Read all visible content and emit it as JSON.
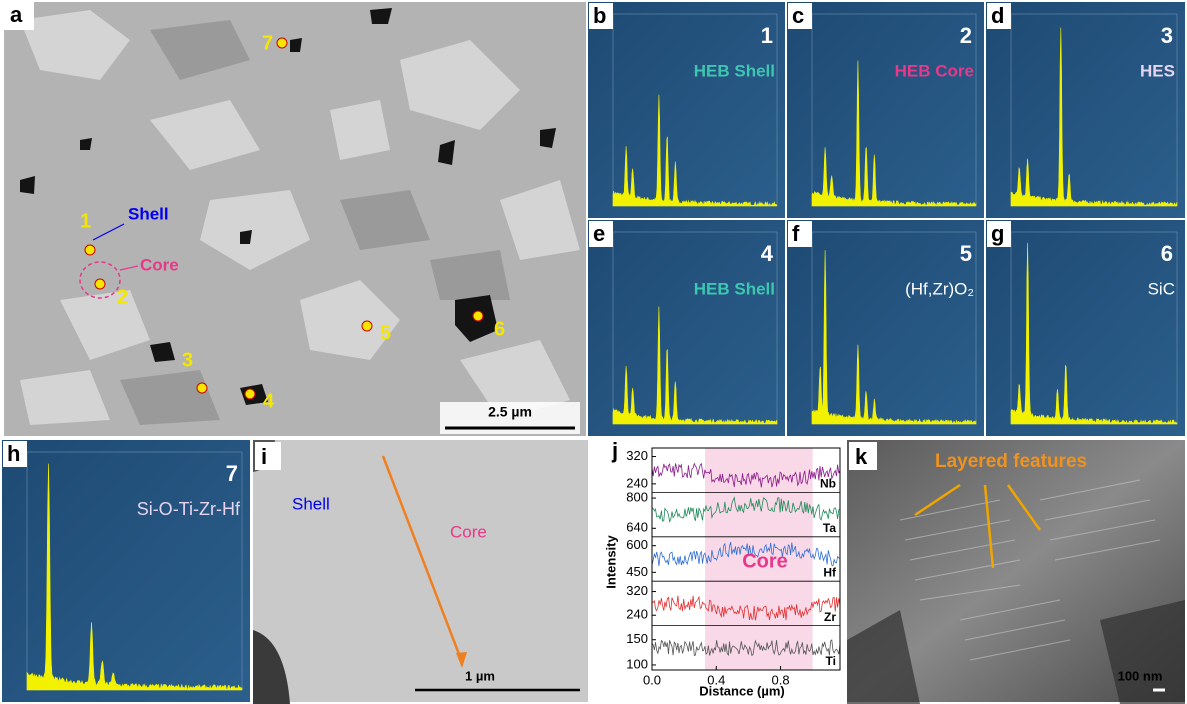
{
  "panels": {
    "a": {
      "label": "a",
      "points": [
        "1",
        "2",
        "3",
        "4",
        "5",
        "6",
        "7"
      ],
      "shell": "Shell",
      "core": "Core",
      "scale_bar": "2.5 µm"
    },
    "spectra": [
      {
        "label": "b",
        "number": "1",
        "phase": "HEB Shell",
        "color": "#3ec7b0"
      },
      {
        "label": "c",
        "number": "2",
        "phase": "HEB Core",
        "color": "#e8388a"
      },
      {
        "label": "d",
        "number": "3",
        "phase": "HES",
        "color": "#e6d4f0"
      },
      {
        "label": "e",
        "number": "4",
        "phase": "HEB Shell",
        "color": "#3ec7b0"
      },
      {
        "label": "f",
        "number": "5",
        "phase": "(Hf,Zr)O₂",
        "color": "#ffffff"
      },
      {
        "label": "g",
        "number": "6",
        "phase": "SiC",
        "color": "#ffffff"
      },
      {
        "label": "h",
        "number": "7",
        "phase": "Si-O-Ti-Zr-Hf",
        "color": "#e6d4f0"
      }
    ],
    "i": {
      "label": "i",
      "shell": "Shell",
      "core": "Core",
      "scale_bar": "1 µm"
    },
    "j": {
      "label": "j",
      "y_label": "Intensity",
      "x_label": "Distance (µm)",
      "core": "Core",
      "xlim": [
        0,
        1.17
      ],
      "xticks": [
        {
          "value": 0,
          "label": "0.0"
        },
        0.4,
        0.8
      ],
      "elements": [
        {
          "name": "Nb",
          "color": "#8b1a8b",
          "ylim": [
            215,
            345
          ],
          "yticks": [
            240,
            320
          ]
        },
        {
          "name": "Ta",
          "color": "#1f8a5a",
          "ylim": [
            595,
            830
          ],
          "yticks": [
            640,
            800
          ]
        },
        {
          "name": "Hf",
          "color": "#2f6fd6",
          "ylim": [
            400,
            650
          ],
          "yticks": [
            450,
            600
          ]
        },
        {
          "name": "Zr",
          "color": "#e03030",
          "ylim": [
            205,
            355
          ],
          "yticks": [
            240,
            320
          ]
        },
        {
          "name": "Ti",
          "color": "#555555",
          "ylim": [
            90,
            178
          ],
          "yticks": [
            100,
            150
          ]
        }
      ]
    },
    "k": {
      "label": "k",
      "annotation": "Layered features",
      "scale_bar": "100 nm"
    }
  }
}
